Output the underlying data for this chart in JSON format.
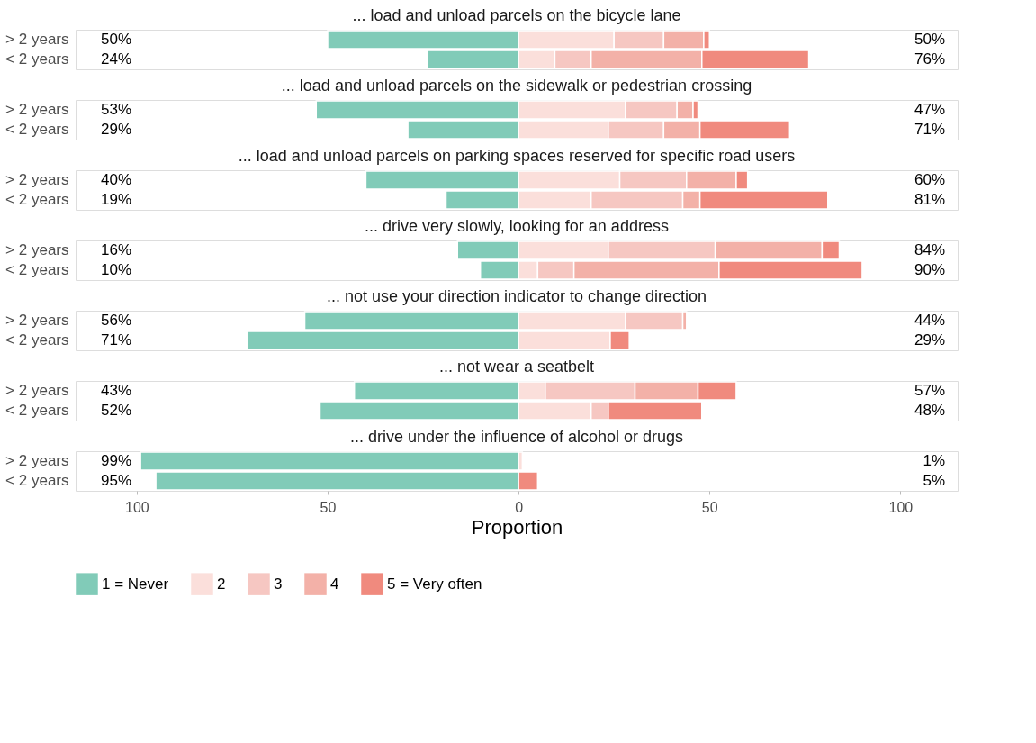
{
  "chart_data": [
    {
      "type": "bar",
      "orientation": "horizontal",
      "stacked": true,
      "title": "... load and unload parcels on the bicycle lane",
      "categories": [
        "> 2 years",
        "< 2 years"
      ],
      "xlim": [
        -116,
        115
      ],
      "tick_labels": "y",
      "annotations": [
        "50%",
        "24%",
        "50%",
        "76%"
      ],
      "series": [
        {
          "color": "#81cbb8",
          "values": [
            -50,
            -24
          ]
        },
        {
          "color": "#fbdfdb",
          "values": [
            25,
            9.5
          ]
        },
        {
          "color": "#f6c7c2",
          "values": [
            13,
            9.5
          ]
        },
        {
          "color": "#f3b1a8",
          "values": [
            10.5,
            29
          ]
        },
        {
          "color": "#f08a7e",
          "values": [
            1.5,
            28
          ]
        }
      ]
    },
    {
      "type": "bar",
      "orientation": "horizontal",
      "stacked": true,
      "title": "... load and unload parcels on the sidewalk or pedestrian crossing",
      "categories": [
        "> 2 years",
        "< 2 years"
      ],
      "xlim": [
        -116,
        115
      ],
      "tick_labels": "y",
      "annotations": [
        "53%",
        "29%",
        "47%",
        "71%"
      ],
      "series": [
        {
          "color": "#81cbb8",
          "values": [
            -53,
            -29
          ]
        },
        {
          "color": "#fbdfdb",
          "values": [
            28,
            23.5
          ]
        },
        {
          "color": "#f6c7c2",
          "values": [
            13.5,
            14.5
          ]
        },
        {
          "color": "#f3b1a8",
          "values": [
            4.2,
            9.5
          ]
        },
        {
          "color": "#f08a7e",
          "values": [
            1.3,
            23.5
          ]
        }
      ]
    },
    {
      "type": "bar",
      "orientation": "horizontal",
      "stacked": true,
      "title": "... load and unload parcels on parking spaces reserved for specific road users",
      "categories": [
        "> 2 years",
        "< 2 years"
      ],
      "xlim": [
        -116,
        115
      ],
      "tick_labels": "y",
      "annotations": [
        "40%",
        "19%",
        "60%",
        "81%"
      ],
      "series": [
        {
          "color": "#81cbb8",
          "values": [
            -40,
            -19
          ]
        },
        {
          "color": "#fbdfdb",
          "values": [
            26.5,
            19
          ]
        },
        {
          "color": "#f6c7c2",
          "values": [
            17.5,
            24
          ]
        },
        {
          "color": "#f3b1a8",
          "values": [
            13,
            4.5
          ]
        },
        {
          "color": "#f08a7e",
          "values": [
            3,
            33.5
          ]
        }
      ]
    },
    {
      "type": "bar",
      "orientation": "horizontal",
      "stacked": true,
      "title": "... drive very slowly, looking for an address",
      "categories": [
        "> 2 years",
        "< 2 years"
      ],
      "xlim": [
        -116,
        115
      ],
      "tick_labels": "y",
      "annotations": [
        "16%",
        "10%",
        "84%",
        "90%"
      ],
      "series": [
        {
          "color": "#81cbb8",
          "values": [
            -16,
            -10
          ]
        },
        {
          "color": "#fbdfdb",
          "values": [
            23.5,
            5
          ]
        },
        {
          "color": "#f6c7c2",
          "values": [
            28,
            9.5
          ]
        },
        {
          "color": "#f3b1a8",
          "values": [
            28,
            38
          ]
        },
        {
          "color": "#f08a7e",
          "values": [
            4.5,
            37.5
          ]
        }
      ]
    },
    {
      "type": "bar",
      "orientation": "horizontal",
      "stacked": true,
      "title": "... not use your direction indicator to change direction",
      "categories": [
        "> 2 years",
        "< 2 years"
      ],
      "xlim": [
        -116,
        115
      ],
      "tick_labels": "y",
      "annotations": [
        "56%",
        "71%",
        "44%",
        "29%"
      ],
      "series": [
        {
          "color": "#81cbb8",
          "values": [
            -56,
            -71
          ]
        },
        {
          "color": "#fbdfdb",
          "values": [
            28,
            24
          ]
        },
        {
          "color": "#f6c7c2",
          "values": [
            15,
            null
          ]
        },
        {
          "color": "#f3b1a8",
          "values": [
            1,
            null
          ]
        },
        {
          "color": "#f08a7e",
          "values": [
            null,
            5
          ]
        }
      ]
    },
    {
      "type": "bar",
      "orientation": "horizontal",
      "stacked": true,
      "title": "... not wear a seatbelt",
      "categories": [
        "> 2 years",
        "< 2 years"
      ],
      "xlim": [
        -116,
        115
      ],
      "tick_labels": "y",
      "annotations": [
        "43%",
        "52%",
        "57%",
        "48%"
      ],
      "series": [
        {
          "color": "#81cbb8",
          "values": [
            -43,
            -52
          ]
        },
        {
          "color": "#fbdfdb",
          "values": [
            7,
            19
          ]
        },
        {
          "color": "#f6c7c2",
          "values": [
            23.5,
            4.5
          ]
        },
        {
          "color": "#f3b1a8",
          "values": [
            16.5,
            null
          ]
        },
        {
          "color": "#f08a7e",
          "values": [
            10,
            24.5
          ]
        }
      ]
    },
    {
      "type": "bar",
      "orientation": "horizontal",
      "stacked": true,
      "title": "... drive under the influence of alcohol or drugs",
      "categories": [
        "> 2 years",
        "< 2 years"
      ],
      "xlim": [
        -116,
        115
      ],
      "xticks": [
        {
          "value": -100,
          "label": "100"
        },
        {
          "value": -50,
          "label": "50"
        },
        0,
        50,
        100
      ],
      "xlabel": "Proportion",
      "legend": "bottom",
      "annotations": [
        "99%",
        "95%",
        "1%",
        "5%"
      ],
      "series": [
        {
          "name": "1 = Never",
          "color": "#81cbb8",
          "values": [
            -99,
            -95
          ]
        },
        {
          "name": "2",
          "color": "#fbdfdb",
          "values": [
            1,
            null
          ]
        },
        {
          "name": "3",
          "color": "#f6c7c2",
          "values": [
            null,
            null
          ]
        },
        {
          "name": "4",
          "color": "#f3b1a8",
          "values": [
            null,
            null
          ]
        },
        {
          "name": "5 = Very often",
          "color": "#f08a7e",
          "values": [
            null,
            5
          ]
        }
      ]
    }
  ]
}
